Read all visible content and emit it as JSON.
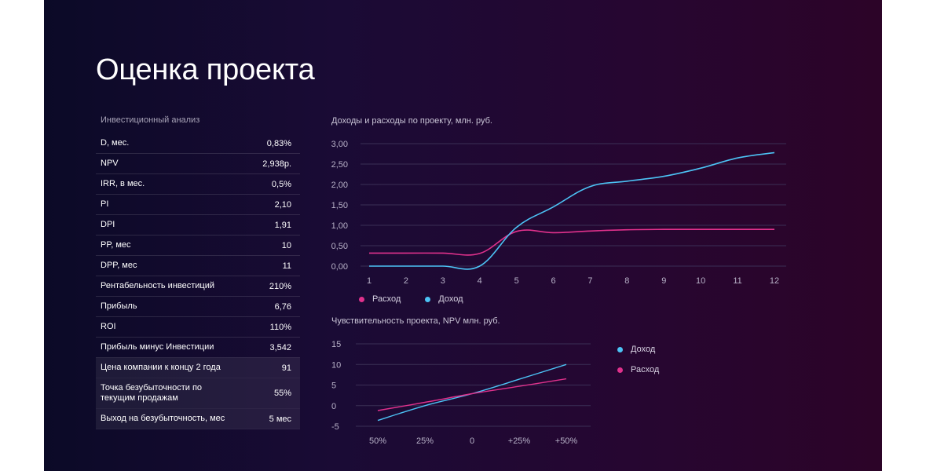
{
  "title": "Оценка проекта",
  "table": {
    "caption": "Инвестиционный анализ",
    "rows": [
      {
        "label": "D, мес.",
        "value": "0,83%"
      },
      {
        "label": "NPV",
        "value": "2,938р."
      },
      {
        "label": "IRR, в мес.",
        "value": "0,5%"
      },
      {
        "label": "PI",
        "value": "2,10"
      },
      {
        "label": "DPI",
        "value": "1,91"
      },
      {
        "label": "PP, мес",
        "value": "10"
      },
      {
        "label": "DPP, мес",
        "value": "11"
      },
      {
        "label": "Рентабельность инвестиций",
        "value": "210%"
      },
      {
        "label": "Прибыль",
        "value": "6,76"
      },
      {
        "label": "ROI",
        "value": "110%"
      },
      {
        "label": "Прибыль минус Инвестиции",
        "value": "3,542"
      },
      {
        "label": "Цена компании к концу 2 года",
        "value": "91"
      },
      {
        "label": "Точка безубыточности по текущим продажам",
        "value": "55%"
      },
      {
        "label": "Выход на безубыточность, мес",
        "value": "5 мес"
      }
    ]
  },
  "colors": {
    "income": "#4cc3f5",
    "expense": "#e0318c",
    "grid": "#3a2f55",
    "tick": "#b8b2c8"
  },
  "chart_data": [
    {
      "type": "line",
      "title": "Доходы и расходы по проекту, млн. руб.",
      "x": [
        1,
        2,
        3,
        4,
        5,
        6,
        7,
        8,
        9,
        10,
        11,
        12
      ],
      "xticks": [
        "1",
        "2",
        "3",
        "4",
        "5",
        "6",
        "7",
        "8",
        "9",
        "10",
        "11",
        "12"
      ],
      "yticks": [
        "0,00",
        "0,50",
        "1,00",
        "1,50",
        "2,00",
        "2,50",
        "3,00"
      ],
      "ylim": [
        0,
        3
      ],
      "grid": true,
      "legend_position": "bottom-left",
      "series": [
        {
          "name": "Расход",
          "color_key": "expense",
          "values": [
            0.32,
            0.32,
            0.32,
            0.31,
            0.85,
            0.82,
            0.86,
            0.89,
            0.9,
            0.9,
            0.9,
            0.9
          ]
        },
        {
          "name": "Доход",
          "color_key": "income",
          "values": [
            0.0,
            0.0,
            0.0,
            0.0,
            0.95,
            1.45,
            1.95,
            2.08,
            2.2,
            2.4,
            2.65,
            2.78
          ]
        }
      ]
    },
    {
      "type": "line",
      "title": "Чувствительность проекта, NPV млн. руб.",
      "categories": [
        "50%",
        "25%",
        "0",
        "+25%",
        "+50%"
      ],
      "yticks": [
        "-5",
        "0",
        "5",
        "10",
        "15"
      ],
      "ylim": [
        -5,
        15
      ],
      "grid": true,
      "legend_position": "right",
      "series": [
        {
          "name": "Доход",
          "color_key": "income",
          "values": [
            -3.6,
            0,
            2.9,
            6.4,
            10
          ]
        },
        {
          "name": "Расход",
          "color_key": "expense",
          "values": [
            -1.2,
            0.8,
            2.9,
            4.7,
            6.5
          ]
        }
      ]
    }
  ]
}
